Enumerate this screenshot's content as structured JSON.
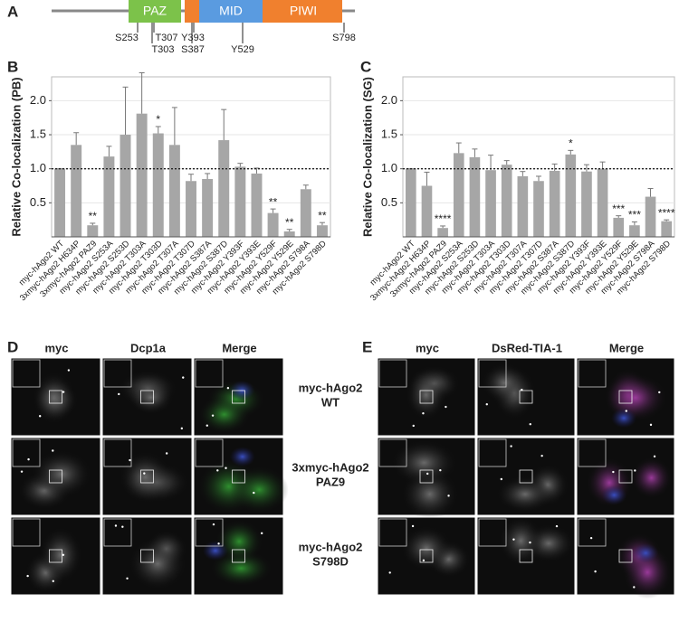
{
  "panel_labels": [
    "A",
    "B",
    "C",
    "D",
    "E"
  ],
  "domain_diagram": {
    "domains": [
      "PAZ",
      "MID",
      "PIWI"
    ],
    "sites": [
      "S253",
      "T307",
      "T303",
      "Y393",
      "S387",
      "Y529",
      "S798"
    ]
  },
  "chart_data": [
    {
      "type": "bar",
      "y_label": "Relative Co-localization (PB)",
      "categories": [
        "myc-hAgo2 WT",
        "3xmyc-hAgo2 H634P",
        "3xmyc-hAgo2 PAZ9",
        "myc-hAgo2 S253A",
        "myc-hAgo2 S253D",
        "myc-hAgo2 T303A",
        "myc-hAgo2 T303D",
        "myc-hAgo2 T307A",
        "myc-hAgo2 T307D",
        "myc-hAgo2 S387A",
        "myc-hAgo2 S387D",
        "myc-hAgo2 Y393F",
        "myc-hAgo2 Y393E",
        "myc-hAgo2 Y529F",
        "myc-hAgo2 Y529E",
        "myc-hAgo2 S798A",
        "myc-hAgo2 S798D"
      ],
      "values": [
        1.0,
        1.35,
        0.17,
        1.18,
        1.5,
        1.81,
        1.52,
        1.35,
        0.82,
        0.85,
        1.42,
        1.03,
        0.93,
        0.35,
        0.08,
        0.7,
        0.17
      ],
      "errors": [
        0,
        0.18,
        0.03,
        0.15,
        0.7,
        0.6,
        0.1,
        0.55,
        0.1,
        0.08,
        0.45,
        0.05,
        0.08,
        0.06,
        0.03,
        0.06,
        0.04
      ],
      "significance": [
        null,
        null,
        "**",
        null,
        null,
        null,
        "*",
        null,
        null,
        null,
        null,
        null,
        null,
        "**",
        "**",
        null,
        "**"
      ],
      "reference_line": 1,
      "color": "#a6a6a6",
      "grid": true,
      "ylim": [
        0,
        2.35
      ],
      "yticks": [
        0.5,
        {
          "value": 1,
          "label": "1.0"
        },
        1.5,
        {
          "value": 2,
          "label": "2.0"
        }
      ]
    },
    {
      "type": "bar",
      "y_label": "Relative Co-localization (SG)",
      "categories": [
        "myc-hAgo2 WT",
        "3xmyc-hAgo2 H634P",
        "3xmyc-hAgo2 PAZ9",
        "myc-hAgo2 S253A",
        "myc-hAgo2 S253D",
        "myc-hAgo2 T303A",
        "myc-hAgo2 T303D",
        "myc-hAgo2 T307A",
        "myc-hAgo2 T307D",
        "myc-hAgo2 S387A",
        "myc-hAgo2 S387D",
        "myc-hAgo2 Y393F",
        "myc-hAgo2 Y393E",
        "myc-hAgo2 Y529F",
        "myc-hAgo2 Y529E",
        "myc-hAgo2 S798A",
        "myc-hAgo2 S798D"
      ],
      "values": [
        1.0,
        0.75,
        0.13,
        1.23,
        1.17,
        0.98,
        1.06,
        0.89,
        0.82,
        0.97,
        1.21,
        0.96,
        1.0,
        0.28,
        0.17,
        0.59,
        0.23
      ],
      "errors": [
        0,
        0.2,
        0.03,
        0.15,
        0.12,
        0.22,
        0.06,
        0.07,
        0.07,
        0.1,
        0.06,
        0.1,
        0.1,
        0.03,
        0.05,
        0.12,
        0.02
      ],
      "significance": [
        null,
        null,
        "****",
        null,
        null,
        null,
        null,
        null,
        null,
        null,
        "*",
        null,
        null,
        "***",
        "***",
        null,
        "****"
      ],
      "reference_line": 1,
      "color": "#a6a6a6",
      "grid": true,
      "ylim": [
        0,
        2.35
      ],
      "yticks": [
        0.5,
        {
          "value": 1,
          "label": "1.0"
        },
        1.5,
        {
          "value": 2,
          "label": "2.0"
        }
      ]
    }
  ],
  "panel_d": {
    "columns": [
      "myc",
      "Dcp1a",
      "Merge"
    ]
  },
  "panel_e": {
    "columns": [
      "myc",
      "DsRed-TIA-1",
      "Merge"
    ]
  },
  "row_labels": [
    [
      "myc-hAgo2",
      "WT"
    ],
    [
      "3xmyc-hAgo2",
      "PAZ9"
    ],
    [
      "myc-hAgo2",
      "S798D"
    ]
  ]
}
